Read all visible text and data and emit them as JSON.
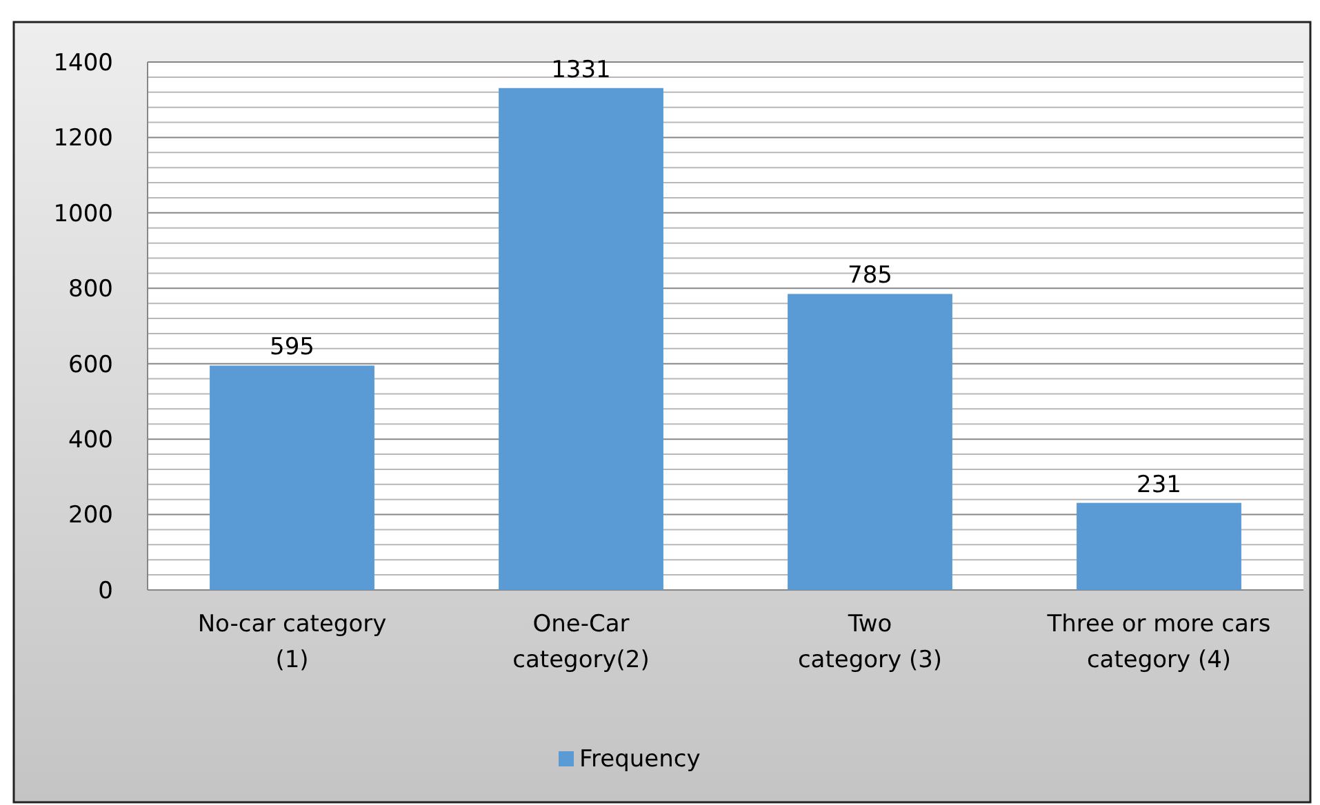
{
  "chart_data": {
    "type": "bar",
    "categories": [
      "No-car category\n(1)",
      "One-Car\ncategory(2)",
      "Two\ncategory (3)",
      "Three or more cars\ncategory (4)"
    ],
    "series": [
      {
        "name": "Frequency",
        "color": "#5b9bd5",
        "values": [
          595,
          1331,
          785,
          231
        ]
      }
    ],
    "ylim": [
      0,
      1400
    ],
    "yticks": [
      0,
      {
        "value": 40,
        "label": null
      },
      {
        "value": 80,
        "label": null
      },
      {
        "value": 120,
        "label": null
      },
      {
        "value": 160,
        "label": null
      },
      200,
      {
        "value": 240,
        "label": null
      },
      {
        "value": 280,
        "label": null
      },
      {
        "value": 320,
        "label": null
      },
      {
        "value": 360,
        "label": null
      },
      400,
      {
        "value": 440,
        "label": null
      },
      {
        "value": 480,
        "label": null
      },
      {
        "value": 520,
        "label": null
      },
      {
        "value": 560,
        "label": null
      },
      600,
      {
        "value": 640,
        "label": null
      },
      {
        "value": 680,
        "label": null
      },
      {
        "value": 720,
        "label": null
      },
      {
        "value": 760,
        "label": null
      },
      800,
      {
        "value": 840,
        "label": null
      },
      {
        "value": 880,
        "label": null
      },
      {
        "value": 920,
        "label": null
      },
      {
        "value": 960,
        "label": null
      },
      1000,
      {
        "value": 1040,
        "label": null
      },
      {
        "value": 1080,
        "label": null
      },
      {
        "value": 1120,
        "label": null
      },
      {
        "value": 1160,
        "label": null
      },
      1200,
      {
        "value": 1240,
        "label": null
      },
      {
        "value": 1280,
        "label": null
      },
      {
        "value": 1320,
        "label": null
      },
      {
        "value": 1360,
        "label": null
      },
      1400
    ],
    "grid": "y",
    "data_labels": true,
    "legend": "bottom"
  }
}
